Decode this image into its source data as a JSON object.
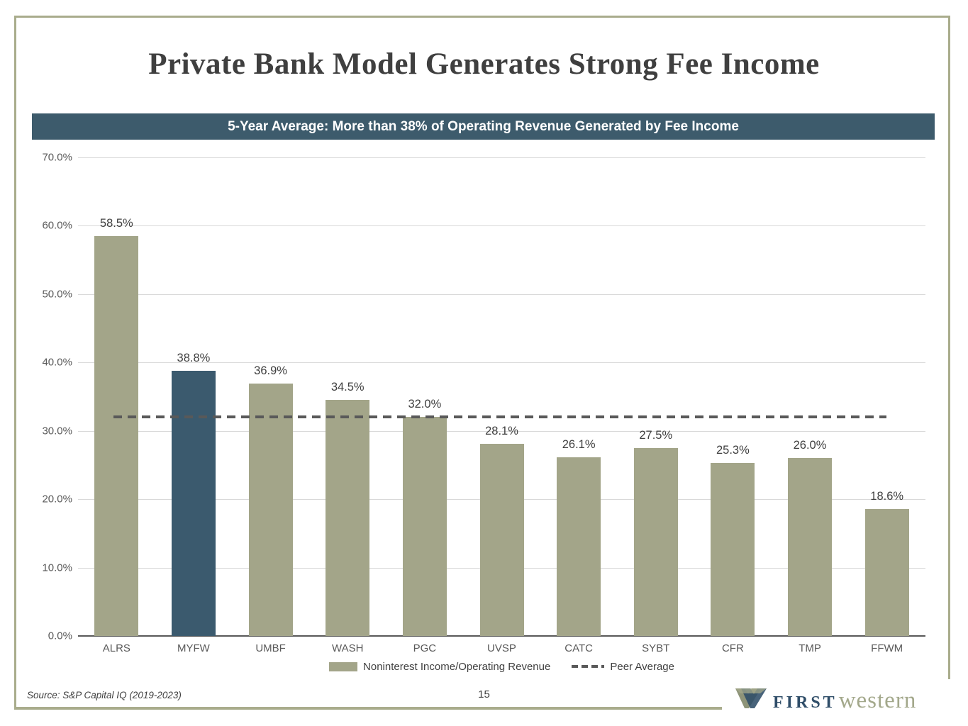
{
  "slide": {
    "title": "Private Bank Model Generates Strong Fee Income",
    "banner": "5-Year Average: More than 38% of Operating Revenue Generated by Fee Income",
    "source": "Source: S&P Capital IQ (2019-2023)",
    "page_number": "15",
    "logo": {
      "first": "FIRST",
      "western": "western"
    }
  },
  "colors": {
    "banner_bg": "#3D5B6C",
    "bar_sage": "#A3A589",
    "bar_highlight": "#3B5A6E",
    "frame_border": "#A9AC8C",
    "gridline": "#D9D9D9",
    "axis_line": "#595959",
    "peer_line": "#595959",
    "tick_text": "#595959",
    "data_label_text": "#3F3F3F",
    "logo_navy": "#2F4D68",
    "logo_sage": "#A3A88B"
  },
  "chart_data": {
    "type": "bar",
    "title": "5-Year Average: More than 38% of Operating Revenue Generated by Fee Income",
    "categories": [
      "ALRS",
      "MYFW",
      "UMBF",
      "WASH",
      "PGC",
      "UVSP",
      "CATC",
      "SYBT",
      "CFR",
      "TMP",
      "FFWM"
    ],
    "values": [
      58.5,
      38.8,
      36.9,
      34.5,
      32.0,
      28.1,
      26.1,
      27.5,
      25.3,
      26.0,
      18.6
    ],
    "data_labels": [
      "58.5%",
      "38.8%",
      "36.9%",
      "34.5%",
      "32.0%",
      "28.1%",
      "26.1%",
      "27.5%",
      "25.3%",
      "26.0%",
      "18.6%"
    ],
    "highlighted_category": "MYFW",
    "highlighted_index": 1,
    "peer_average": 32.0,
    "xlabel": "",
    "ylabel": "",
    "y_axis": {
      "min": 0,
      "max": 70,
      "step": 10,
      "tick_labels": [
        "0.0%",
        "10.0%",
        "20.0%",
        "30.0%",
        "40.0%",
        "50.0%",
        "60.0%",
        "70.0%"
      ]
    },
    "grid": true,
    "legend_position": "bottom",
    "legend": [
      {
        "label": "Noninterest Income/Operating Revenue",
        "type": "bar",
        "color": "#A3A589"
      },
      {
        "label": "Peer Average",
        "type": "dashed-line",
        "color": "#595959"
      }
    ]
  }
}
